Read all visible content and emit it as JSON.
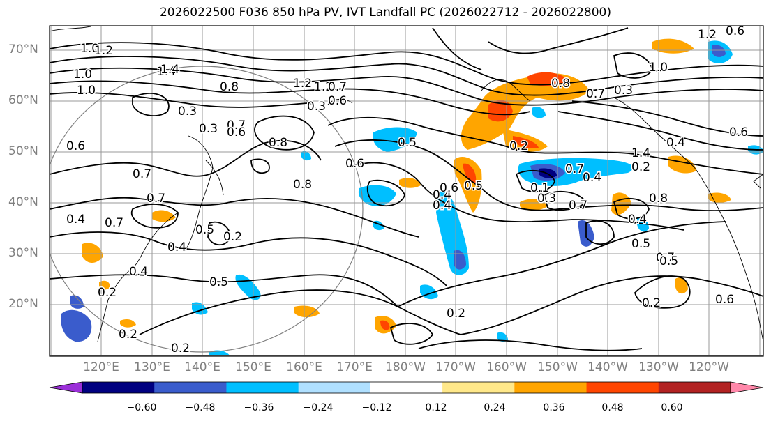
{
  "title": "2026022500 F036 850 hPa PV, IVT Landfall PC (2026022712 - 2026022800)",
  "lat_labels": [
    "70°N",
    "60°N",
    "50°N",
    "40°N",
    "30°N",
    "20°N"
  ],
  "lon_labels": [
    "120°E",
    "130°E",
    "140°E",
    "150°E",
    "160°E",
    "170°E",
    "180°W",
    "170°W",
    "160°W",
    "150°W",
    "140°W",
    "130°W",
    "120°W"
  ],
  "colorbar": {
    "colors": [
      "#9b30d8",
      "#000080",
      "#3a5ccc",
      "#00bfff",
      "#b0e0ff",
      "#ffffff",
      "#ffe88a",
      "#ffa500",
      "#ff4500",
      "#b22222",
      "#ff88aa"
    ],
    "labels": [
      "−0.60",
      "−0.48",
      "−0.36",
      "−0.24",
      "−0.12",
      "0.12",
      "0.24",
      "0.36",
      "0.48",
      "0.60"
    ]
  },
  "contour_labels": [
    "0.2",
    "0.3",
    "0.4",
    "0.5",
    "0.6",
    "0.7",
    "0.8",
    "1.0",
    "1.2",
    "1.4"
  ],
  "visible_contour_labels": [
    "1.0",
    "1.2",
    "1.4",
    "1.0",
    "1.0",
    "0.3",
    "0.6",
    "0.8",
    "0.7",
    "1.2",
    "0.3",
    "0.3",
    "0.7",
    "0.6",
    "0.8",
    "0.8",
    "0.7",
    "0.5",
    "0.4",
    "0.2",
    "0.4",
    "0.2",
    "0.2",
    "0.2",
    "0.4",
    "0.7",
    "0.6",
    "0.4",
    "0.6",
    "0.5",
    "0.4",
    "0.5",
    "0.7",
    "0.3",
    "0.4",
    "0.5",
    "0.2",
    "0.6",
    "0.7",
    "0.8",
    "1.4",
    "0.4",
    "1.0",
    "1.2",
    "0.8",
    "0.7",
    "0.5",
    "0.3",
    "0.6",
    "0.7",
    "0.1",
    "0.2",
    "0.6",
    "0.7",
    "1.4",
    "1.2",
    "0.2",
    "0.2",
    "0.5",
    "0.4",
    "0.6"
  ]
}
